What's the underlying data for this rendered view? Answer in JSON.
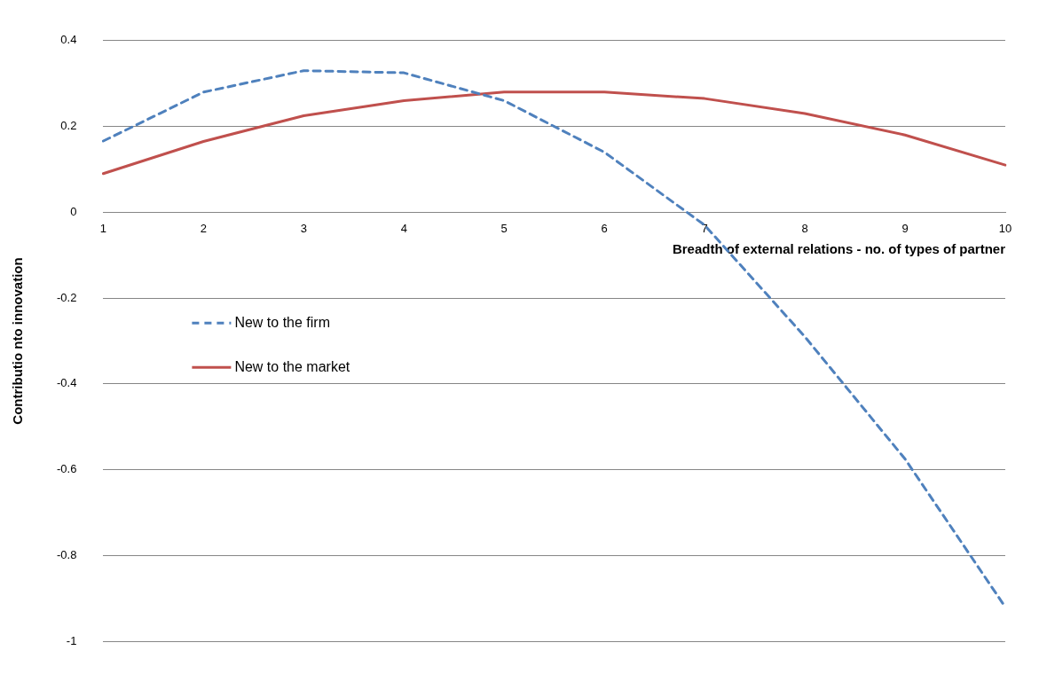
{
  "chart_data": {
    "type": "line",
    "xlabel": "Breadth of external relations - no. of types of partner",
    "ylabel": "Contributio nto innovation",
    "categories": [
      "1",
      "2",
      "3",
      "4",
      "5",
      "6",
      "7",
      "8",
      "9",
      "10"
    ],
    "series": [
      {
        "name": "New to the firm",
        "color": "#4f81bd",
        "line_style": "dashed",
        "values": [
          0.166,
          0.28,
          0.33,
          0.325,
          0.26,
          0.14,
          -0.03,
          -0.29,
          -0.575,
          -0.92
        ]
      },
      {
        "name": "New to the market",
        "color": "#c0504d",
        "line_style": "solid",
        "values": [
          0.09,
          0.165,
          0.225,
          0.26,
          0.28,
          0.28,
          0.265,
          0.23,
          0.18,
          0.11
        ]
      }
    ],
    "ylim": [
      -1,
      0.4
    ],
    "yticks": [
      -1,
      -0.8,
      -0.6,
      -0.4,
      -0.2,
      0,
      0.2,
      0.4
    ],
    "grid": "y",
    "legend": "left",
    "marker": "none"
  }
}
